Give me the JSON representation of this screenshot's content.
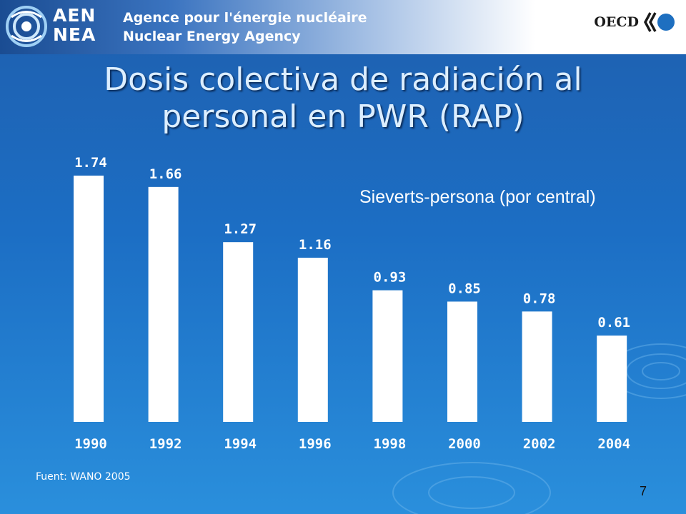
{
  "header": {
    "logo_letters_line1": "AEN",
    "logo_letters_line2": "NEA",
    "agency_fr": "Agence pour l'énergie nucléaire",
    "agency_en": "Nuclear Energy Agency",
    "oecd": "OECD"
  },
  "slide": {
    "title_line1": "Dosis colectiva de radiación al",
    "title_line2": "personal en PWR (RAP)",
    "unit_label": "Sieverts-persona (por central)",
    "source": "Fuent: WANO 2005",
    "page_number": "7"
  },
  "colors": {
    "background_top": "#1f5fae",
    "background_bottom": "#2a8fdc",
    "bar": "#ffffff",
    "title": "#dceeff"
  },
  "chart_data": {
    "type": "bar",
    "title": "",
    "xlabel": "",
    "ylabel": "",
    "categories": [
      "1990",
      "1992",
      "1994",
      "1996",
      "1998",
      "2000",
      "2002",
      "2004"
    ],
    "values": [
      1.74,
      1.66,
      1.27,
      1.16,
      0.93,
      0.85,
      0.78,
      0.61
    ],
    "value_labels": [
      "1.74",
      "1.66",
      "1.27",
      "1.16",
      "0.93",
      "0.85",
      "0.78",
      "0.61"
    ],
    "ylim": [
      0,
      1.74
    ],
    "grid": false,
    "legend": "none"
  }
}
